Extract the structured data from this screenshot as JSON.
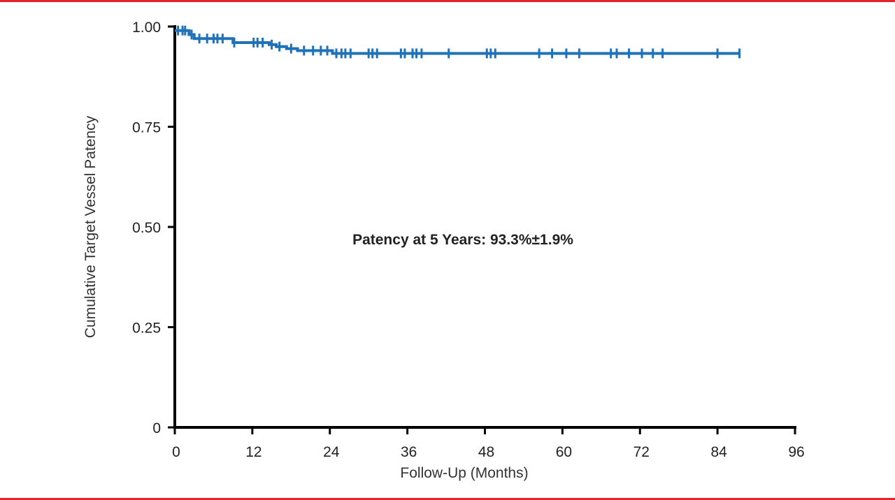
{
  "chart_data": {
    "type": "line",
    "subtype": "kaplan-meier",
    "xlabel": "Follow-Up (Months)",
    "ylabel": "Cumulative Target Vessel Patency",
    "xlim": [
      0,
      96
    ],
    "ylim": [
      0,
      1
    ],
    "xticks": [
      "0",
      "12",
      "24",
      "36",
      "48",
      "60",
      "72",
      "84",
      "96"
    ],
    "yticks": [
      "0",
      "0.25",
      "0.50",
      "0.75",
      "1.00"
    ],
    "grid": false,
    "annotation": "Patency at 5 Years: 93.3%±1.9%",
    "series_color": "#1f72b8",
    "steps": [
      [
        0,
        0.99
      ],
      [
        2.2,
        0.98
      ],
      [
        3,
        0.97
      ],
      [
        9,
        0.96
      ],
      [
        14.6,
        0.955
      ],
      [
        15.7,
        0.95
      ],
      [
        17.3,
        0.945
      ],
      [
        19,
        0.94
      ],
      [
        24.4,
        0.933
      ],
      [
        87.4,
        0.933
      ]
    ],
    "censored": [
      0.5,
      1.2,
      1.6,
      2.6,
      3.8,
      5,
      6,
      6.6,
      7.4,
      9.2,
      12.2,
      12.8,
      13.6,
      15,
      16.2,
      18,
      20,
      21.4,
      22.6,
      23.6,
      25,
      25.8,
      26.4,
      27.2,
      30,
      30.6,
      31.3,
      35,
      35.6,
      36.8,
      37.4,
      38.2,
      42.4,
      48.3,
      48.9,
      49.6,
      56.4,
      58.4,
      60.6,
      62.6,
      67.5,
      68.4,
      70.3,
      72.3,
      74,
      75.5,
      84,
      87.4
    ]
  },
  "frame": {
    "border_color": "#e3262d"
  }
}
